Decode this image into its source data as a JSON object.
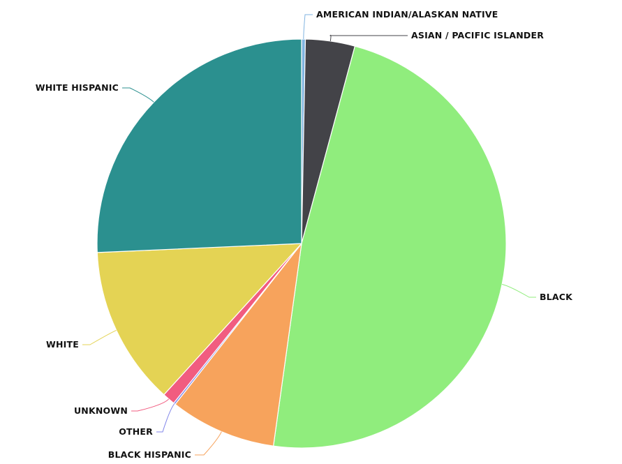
{
  "chart_data": {
    "type": "pie",
    "title": "",
    "legend": "none",
    "slices": [
      {
        "label": "AMERICAN INDIAN/ALASKAN NATIVE",
        "value": 0.3,
        "color": "#7fb3e0"
      },
      {
        "label": "ASIAN / PACIFIC ISLANDER",
        "value": 3.9,
        "color": "#434348"
      },
      {
        "label": "BLACK",
        "value": 48.0,
        "color": "#90ed7d"
      },
      {
        "label": "BLACK HISPANIC",
        "value": 8.4,
        "color": "#f7a35c"
      },
      {
        "label": "OTHER",
        "value": 0.15,
        "color": "#8085e9"
      },
      {
        "label": "UNKNOWN",
        "value": 1.0,
        "color": "#f15c80"
      },
      {
        "label": "WHITE",
        "value": 12.55,
        "color": "#e4d354"
      },
      {
        "label": "WHITE HISPANIC",
        "value": 25.7,
        "color": "#2b908f"
      }
    ]
  }
}
